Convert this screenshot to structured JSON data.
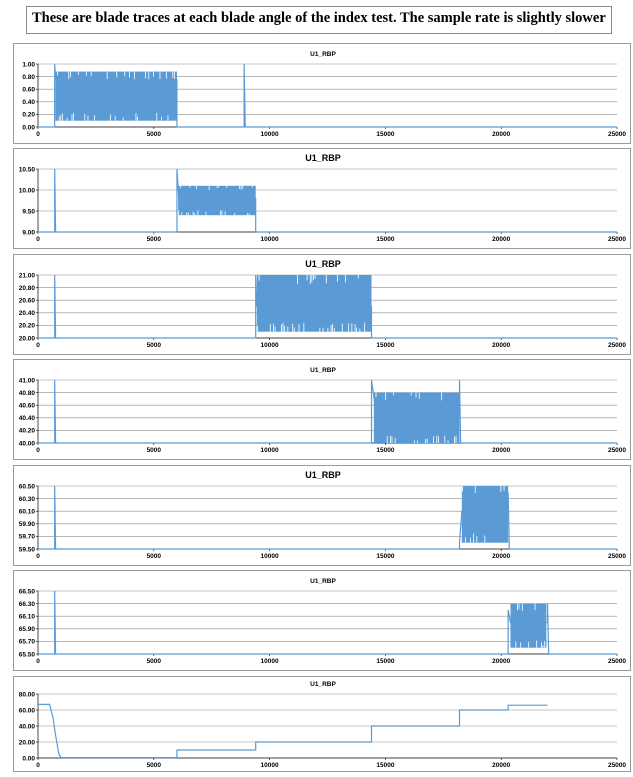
{
  "header": {
    "text": "These are blade  traces at each blade  angle of the index test. The sample rate is slightly slower"
  },
  "colors": {
    "series": "#5b9bd5",
    "grid": "#8c8c8c",
    "axis": "#000000"
  },
  "chart_data": [
    {
      "type": "line",
      "title": "U1_RBP",
      "xlim": [
        0,
        25000
      ],
      "ylim": [
        0.0,
        1.0
      ],
      "x_ticks": [
        "0",
        "5000",
        "10000",
        "15000",
        "20000",
        "25000"
      ],
      "y_ticks": [
        "0.00",
        "0.20",
        "0.40",
        "0.60",
        "0.80",
        "1.00"
      ],
      "series": [
        {
          "points": [
            [
              0,
              0.0
            ],
            [
              720,
              0.0
            ],
            [
              720,
              1.0
            ],
            [
              760,
              0.75
            ],
            [
              6000,
              0.75
            ],
            [
              6000,
              0.0
            ],
            [
              8900,
              0.0
            ],
            [
              8900,
              1.0
            ],
            [
              8950,
              0.0
            ],
            [
              25000,
              0.0
            ]
          ],
          "band": {
            "x_start": 750,
            "x_end": 6000,
            "low": 0.1,
            "high": 0.88
          }
        }
      ]
    },
    {
      "type": "line",
      "title": "U1_RBP",
      "xlim": [
        0,
        25000
      ],
      "ylim": [
        9.0,
        10.5
      ],
      "x_ticks": [
        "0",
        "5000",
        "10000",
        "15000",
        "20000",
        "25000"
      ],
      "y_ticks": [
        "9.00",
        "9.50",
        "10.00",
        "10.50"
      ],
      "series": [
        {
          "points": [
            [
              0,
              9.0
            ],
            [
              720,
              9.0
            ],
            [
              720,
              10.5
            ],
            [
              760,
              9.0
            ],
            [
              6000,
              9.0
            ],
            [
              6000,
              10.5
            ],
            [
              6080,
              9.8
            ],
            [
              9400,
              9.8
            ],
            [
              9400,
              9.0
            ],
            [
              25000,
              9.0
            ]
          ],
          "band": {
            "x_start": 6050,
            "x_end": 9400,
            "low": 9.4,
            "high": 10.1
          }
        }
      ]
    },
    {
      "type": "line",
      "title": "U1_RBP",
      "xlim": [
        0,
        25000
      ],
      "ylim": [
        20.0,
        21.0
      ],
      "x_ticks": [
        "0",
        "5000",
        "10000",
        "15000",
        "20000",
        "25000"
      ],
      "y_ticks": [
        "20.00",
        "20.20",
        "20.40",
        "20.60",
        "20.80",
        "21.00"
      ],
      "series": [
        {
          "points": [
            [
              0,
              20.0
            ],
            [
              720,
              20.0
            ],
            [
              720,
              21.0
            ],
            [
              760,
              20.0
            ],
            [
              9400,
              20.0
            ],
            [
              9400,
              21.0
            ],
            [
              9450,
              20.5
            ],
            [
              14400,
              20.5
            ],
            [
              14400,
              20.0
            ],
            [
              25000,
              20.0
            ]
          ],
          "band": {
            "x_start": 9450,
            "x_end": 14400,
            "low": 20.1,
            "high": 21.0
          }
        }
      ]
    },
    {
      "type": "line",
      "title": "U1_RBP",
      "xlim": [
        0,
        25000
      ],
      "ylim": [
        40.0,
        41.0
      ],
      "x_ticks": [
        "0",
        "5000",
        "10000",
        "15000",
        "20000",
        "25000"
      ],
      "y_ticks": [
        "40.00",
        "40.20",
        "40.40",
        "40.60",
        "40.80",
        "41.00"
      ],
      "series": [
        {
          "points": [
            [
              0,
              40.0
            ],
            [
              720,
              40.0
            ],
            [
              720,
              41.0
            ],
            [
              760,
              40.0
            ],
            [
              14400,
              40.0
            ],
            [
              14400,
              41.0
            ],
            [
              14550,
              40.6
            ],
            [
              18200,
              40.6
            ],
            [
              18200,
              41.0
            ],
            [
              18250,
              40.0
            ],
            [
              25000,
              40.0
            ]
          ],
          "band": {
            "x_start": 14500,
            "x_end": 18200,
            "low": 40.0,
            "high": 40.8
          }
        }
      ]
    },
    {
      "type": "line",
      "title": "U1_RBP",
      "xlim": [
        0,
        25000
      ],
      "ylim": [
        59.5,
        60.5
      ],
      "x_ticks": [
        "0",
        "5000",
        "10000",
        "15000",
        "20000",
        "25000"
      ],
      "y_ticks": [
        "59.50",
        "59.70",
        "59.90",
        "60.10",
        "60.30",
        "60.50"
      ],
      "series": [
        {
          "points": [
            [
              0,
              59.5
            ],
            [
              720,
              59.5
            ],
            [
              720,
              60.5
            ],
            [
              760,
              59.5
            ],
            [
              18200,
              59.5
            ],
            [
              18200,
              59.6
            ],
            [
              18300,
              60.1
            ],
            [
              20300,
              60.1
            ],
            [
              20300,
              60.4
            ],
            [
              20350,
              59.5
            ],
            [
              25000,
              59.5
            ]
          ],
          "band": {
            "x_start": 18300,
            "x_end": 20300,
            "low": 59.6,
            "high": 60.5
          }
        }
      ]
    },
    {
      "type": "line",
      "title": "U1_RBP",
      "xlim": [
        0,
        25000
      ],
      "ylim": [
        65.5,
        66.5
      ],
      "x_ticks": [
        "0",
        "5000",
        "10000",
        "15000",
        "20000",
        "25000"
      ],
      "y_ticks": [
        "65.50",
        "65.70",
        "65.90",
        "66.10",
        "66.30",
        "66.50"
      ],
      "series": [
        {
          "points": [
            [
              0,
              65.5
            ],
            [
              720,
              65.5
            ],
            [
              720,
              66.5
            ],
            [
              760,
              65.5
            ],
            [
              20300,
              65.5
            ],
            [
              20300,
              66.2
            ],
            [
              20400,
              66.0
            ],
            [
              22000,
              66.0
            ],
            [
              22000,
              66.3
            ],
            [
              22050,
              65.5
            ],
            [
              25000,
              65.5
            ]
          ],
          "band": {
            "x_start": 20400,
            "x_end": 21950,
            "low": 65.6,
            "high": 66.3
          }
        }
      ]
    },
    {
      "type": "line",
      "title": "U1_RBP",
      "xlim": [
        0,
        25000
      ],
      "ylim": [
        0.0,
        80.0
      ],
      "x_ticks": [
        "0",
        "5000",
        "10000",
        "15000",
        "20000",
        "25000"
      ],
      "y_ticks": [
        "0.00",
        "20.00",
        "40.00",
        "60.00",
        "80.00"
      ],
      "series": [
        {
          "points": [
            [
              0,
              67
            ],
            [
              500,
              67
            ],
            [
              650,
              50
            ],
            [
              750,
              30
            ],
            [
              900,
              5
            ],
            [
              1000,
              0.5
            ],
            [
              6000,
              0.5
            ],
            [
              6000,
              10
            ],
            [
              9400,
              10
            ],
            [
              9400,
              20
            ],
            [
              14400,
              20
            ],
            [
              14400,
              40
            ],
            [
              18200,
              40
            ],
            [
              18200,
              60
            ],
            [
              20300,
              60
            ],
            [
              20300,
              66
            ],
            [
              22000,
              66
            ]
          ],
          "band": null
        }
      ]
    }
  ]
}
